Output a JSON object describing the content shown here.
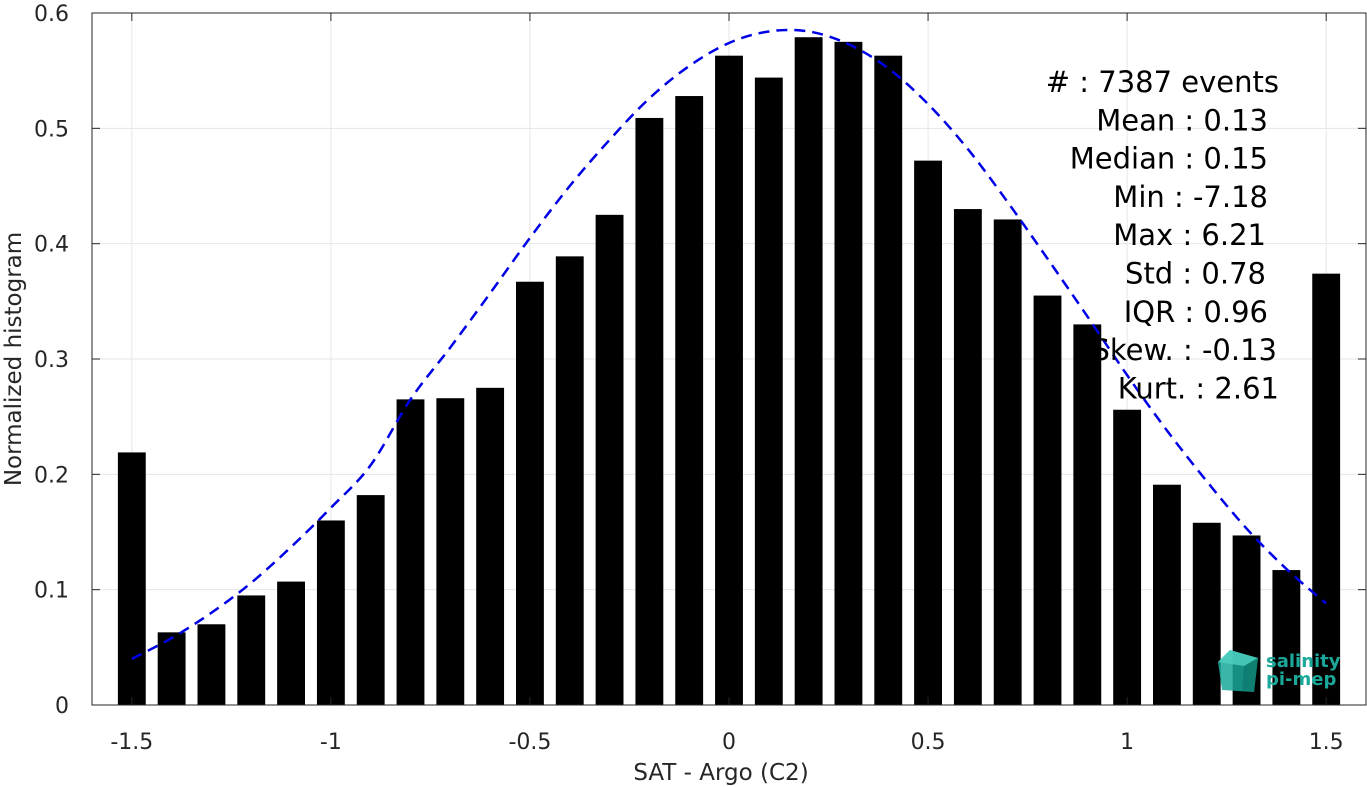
{
  "chart_data": {
    "type": "bar",
    "xlabel": "SAT - Argo (C2)",
    "ylabel": "Normalized histogram",
    "xlim": [
      -1.6,
      1.6
    ],
    "ylim": [
      0,
      0.6
    ],
    "xticks": [
      -1.5,
      -1,
      -0.5,
      0,
      0.5,
      1,
      1.5
    ],
    "xtick_labels": [
      "-1.5",
      "-1",
      "-0.5",
      "0",
      "0.5",
      "1",
      "1.5"
    ],
    "yticks": [
      0,
      0.1,
      0.2,
      0.3,
      0.4,
      0.5,
      0.6
    ],
    "ytick_labels": [
      "0",
      "0.1",
      "0.2",
      "0.3",
      "0.4",
      "0.5",
      "0.6"
    ],
    "grid": true,
    "bar_color": "#000000",
    "x": [
      -1.5,
      -1.4,
      -1.3,
      -1.2,
      -1.1,
      -1.0,
      -0.9,
      -0.8,
      -0.7,
      -0.6,
      -0.5,
      -0.4,
      -0.3,
      -0.2,
      -0.1,
      0.0,
      0.1,
      0.2,
      0.3,
      0.4,
      0.5,
      0.6,
      0.7,
      0.8,
      0.9,
      1.0,
      1.1,
      1.2,
      1.3,
      1.4,
      1.5
    ],
    "values": [
      0.219,
      0.063,
      0.07,
      0.095,
      0.107,
      0.16,
      0.182,
      0.265,
      0.266,
      0.275,
      0.367,
      0.389,
      0.425,
      0.509,
      0.528,
      0.563,
      0.544,
      0.579,
      0.575,
      0.563,
      0.472,
      0.43,
      0.421,
      0.355,
      0.33,
      0.256,
      0.191,
      0.158,
      0.147,
      0.117,
      0.374
    ],
    "fit_curve": {
      "style": "dashed",
      "color": "#0000e6",
      "x": [
        -1.5,
        -1.4,
        -1.3,
        -1.2,
        -1.1,
        -1.0,
        -0.9,
        -0.8,
        -0.7,
        -0.6,
        -0.5,
        -0.4,
        -0.3,
        -0.2,
        -0.1,
        0.0,
        0.1,
        0.2,
        0.3,
        0.4,
        0.5,
        0.6,
        0.7,
        0.8,
        0.9,
        1.0,
        1.1,
        1.2,
        1.3,
        1.4,
        1.5
      ],
      "y": [
        0.04,
        0.058,
        0.08,
        0.106,
        0.137,
        0.171,
        0.208,
        0.265,
        0.31,
        0.357,
        0.405,
        0.45,
        0.49,
        0.526,
        0.554,
        0.574,
        0.584,
        0.584,
        0.573,
        0.552,
        0.521,
        0.482,
        0.436,
        0.387,
        0.337,
        0.286,
        0.238,
        0.194,
        0.153,
        0.118,
        0.088
      ]
    },
    "stats_box": [
      "#  : 7387 events",
      "Mean : 0.13",
      "Median : 0.15",
      "Min : -7.18",
      "Max : 6.21",
      "Std : 0.78",
      "IQR : 0.96",
      "Skew. : -0.13",
      "Kurt. : 2.61"
    ]
  },
  "logo": {
    "line1": "salinity",
    "line2": "pi-mep",
    "color": "#1aa89a"
  }
}
